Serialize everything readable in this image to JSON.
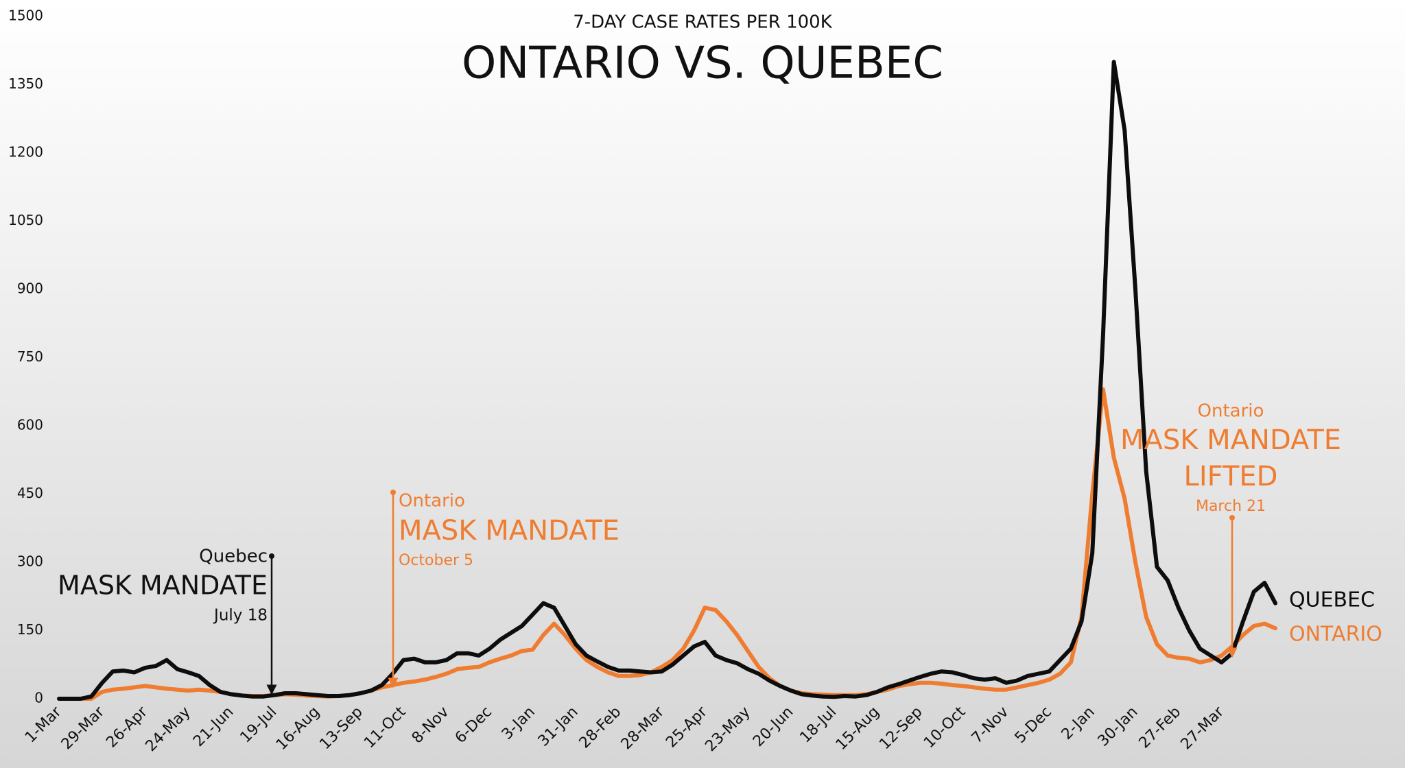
{
  "chart_data": {
    "type": "line",
    "subtitle": "7-DAY CASE RATES PER 100K",
    "title": "ONTARIO VS. QUEBEC",
    "categories": [
      "1-Mar",
      null,
      null,
      null,
      "29-Mar",
      null,
      null,
      null,
      "26-Apr",
      null,
      null,
      null,
      "24-May",
      null,
      null,
      null,
      "21-Jun",
      null,
      null,
      null,
      "19-Jul",
      null,
      null,
      null,
      "16-Aug",
      null,
      null,
      null,
      "13-Sep",
      null,
      null,
      null,
      "11-Oct",
      null,
      null,
      null,
      "8-Nov",
      null,
      null,
      null,
      "6-Dec",
      null,
      null,
      null,
      "3-Jan",
      null,
      null,
      null,
      "31-Jan",
      null,
      null,
      null,
      "28-Feb",
      null,
      null,
      null,
      "28-Mar",
      null,
      null,
      null,
      "25-Apr",
      null,
      null,
      null,
      "23-May",
      null,
      null,
      null,
      "20-Jun",
      null,
      null,
      null,
      "18-Jul",
      null,
      null,
      null,
      "15-Aug",
      null,
      null,
      null,
      "12-Sep",
      null,
      null,
      null,
      "10-Oct",
      null,
      null,
      null,
      "7-Nov",
      null,
      null,
      null,
      "5-Dec",
      null,
      null,
      null,
      "2-Jan",
      null,
      null,
      null,
      "30-Jan",
      null,
      null,
      null,
      "27-Feb",
      null,
      null,
      null,
      "27-Mar",
      null,
      null,
      null,
      null,
      null
    ],
    "series": [
      {
        "name": "QUEBEC",
        "color": "#0d0d0d",
        "values": [
          0,
          0,
          0,
          5,
          35,
          60,
          62,
          58,
          68,
          72,
          85,
          65,
          58,
          50,
          30,
          15,
          10,
          7,
          5,
          5,
          8,
          12,
          12,
          10,
          8,
          6,
          6,
          8,
          12,
          18,
          30,
          55,
          85,
          88,
          80,
          80,
          85,
          100,
          100,
          95,
          110,
          130,
          145,
          160,
          185,
          210,
          200,
          160,
          120,
          95,
          82,
          70,
          62,
          62,
          60,
          58,
          60,
          75,
          95,
          115,
          125,
          95,
          85,
          78,
          65,
          55,
          40,
          28,
          18,
          10,
          7,
          5,
          4,
          6,
          5,
          8,
          15,
          25,
          32,
          40,
          48,
          55,
          60,
          58,
          52,
          45,
          42,
          45,
          35,
          40,
          50,
          55,
          60,
          85,
          110,
          170,
          320,
          800,
          1400,
          1250,
          900,
          500,
          290,
          260,
          200,
          150,
          110,
          95,
          80,
          100,
          170,
          235,
          255,
          210
        ]
      },
      {
        "name": "ONTARIO",
        "color": "#ef7d31",
        "values": [
          0,
          0,
          0,
          0,
          15,
          20,
          22,
          25,
          28,
          25,
          22,
          20,
          18,
          20,
          18,
          15,
          10,
          7,
          6,
          6,
          8,
          10,
          9,
          7,
          6,
          5,
          6,
          8,
          12,
          18,
          25,
          30,
          35,
          38,
          42,
          48,
          55,
          65,
          68,
          70,
          80,
          88,
          95,
          105,
          108,
          140,
          165,
          140,
          110,
          85,
          70,
          58,
          50,
          50,
          52,
          58,
          70,
          85,
          110,
          150,
          200,
          195,
          170,
          140,
          105,
          70,
          45,
          28,
          18,
          12,
          10,
          9,
          8,
          8,
          8,
          10,
          15,
          20,
          28,
          32,
          35,
          35,
          33,
          30,
          28,
          25,
          22,
          20,
          20,
          25,
          30,
          35,
          42,
          55,
          80,
          180,
          450,
          680,
          530,
          440,
          300,
          180,
          120,
          95,
          90,
          88,
          80,
          85,
          95,
          115,
          140,
          160,
          165,
          155
        ]
      }
    ],
    "ylim": [
      0,
      1500
    ],
    "yticks": [
      0,
      150,
      300,
      450,
      600,
      750,
      900,
      1050,
      1200,
      1350,
      1500
    ],
    "annotations": [
      {
        "label": "Quebec",
        "text": [
          "MASK MANDATE"
        ],
        "date": "July 18"
      },
      {
        "label": "Ontario",
        "text": [
          "MASK MANDATE"
        ],
        "date": "October 5"
      },
      {
        "label": "Ontario",
        "text": [
          "MASK MANDATE",
          "LIFTED"
        ],
        "date": "March 21"
      }
    ]
  }
}
